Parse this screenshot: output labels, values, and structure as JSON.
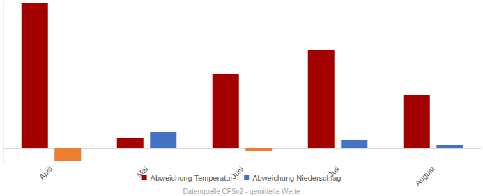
{
  "chart_data": {
    "type": "bar",
    "annotations": [
      "Datenquelle CFSv2 - gemittelte Werte"
    ],
    "categories": [
      "April",
      "Mai",
      "Juni",
      "Juli",
      "August"
    ],
    "series": [
      {
        "name": "Abweichung Temperatur",
        "color": "#a50000",
        "values": [
          2.08,
          0.14,
          1.07,
          1.41,
          0.77
        ]
      },
      {
        "name": "Abweichung Niederschlag",
        "color": "#4472c4",
        "colors": [
          "#ed7d31",
          "#4472c4",
          "#ed7d31",
          "#4472c4",
          "#4472c4"
        ],
        "values": [
          -0.18,
          0.23,
          -0.04,
          0.12,
          0.04
        ]
      }
    ],
    "ylim": [
      -0.2,
      2.1
    ],
    "grid": false,
    "legend": "bottom",
    "tick_labels": "x",
    "data_labels": false
  }
}
